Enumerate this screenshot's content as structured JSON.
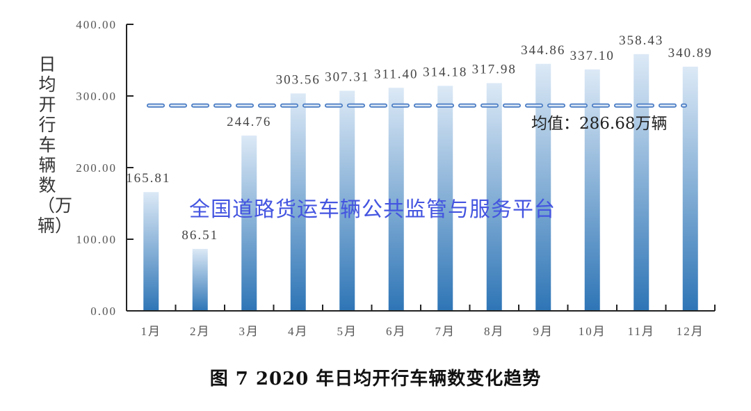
{
  "chart_data": {
    "type": "bar",
    "title": "图 7  2020 年日均开行车辆数变化趋势",
    "ylabel": "日均开行车辆数（万辆）",
    "xlabel": "",
    "categories": [
      "1月",
      "2月",
      "3月",
      "4月",
      "5月",
      "6月",
      "7月",
      "8月",
      "9月",
      "10月",
      "11月",
      "12月"
    ],
    "values": [
      165.81,
      86.51,
      244.76,
      303.56,
      307.31,
      311.4,
      314.18,
      317.98,
      344.86,
      337.1,
      358.43,
      340.89
    ],
    "value_labels": [
      "165.81",
      "86.51",
      "244.76",
      "303.56",
      "307.31",
      "311.40",
      "314.18",
      "317.98",
      "344.86",
      "337.10",
      "358.43",
      "340.89"
    ],
    "ylim": [
      0,
      400
    ],
    "yticks": [
      "0.00",
      "100.00",
      "200.00",
      "300.00",
      "400.00"
    ],
    "grid": false,
    "mean": {
      "value": 286.68,
      "label": "均值：286.68万辆"
    },
    "bar_color_top": "#dce9f6",
    "bar_color_bottom": "#2e75b6",
    "mean_line_color": "#4a7cc4"
  },
  "watermark": "全国道路货运车辆公共监管与服务平台"
}
